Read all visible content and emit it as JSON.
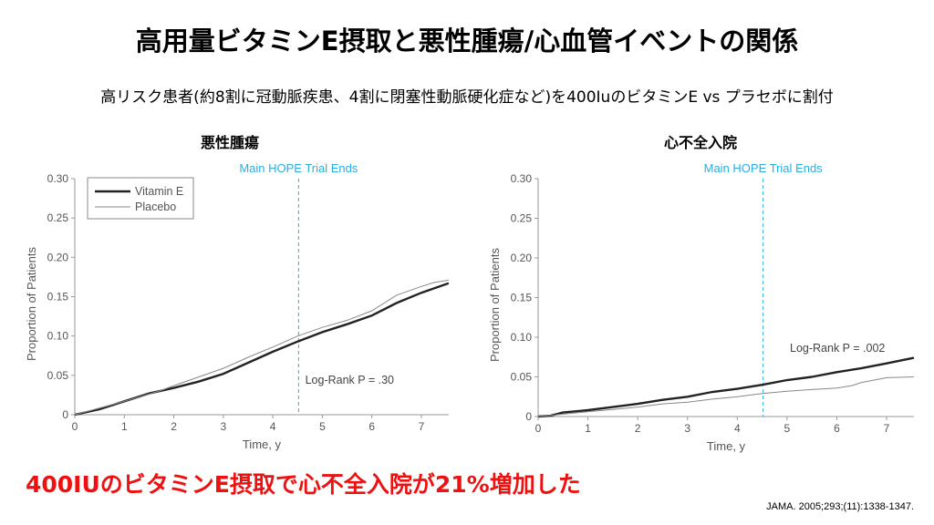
{
  "title": "高用量ビタミンE摂取と悪性腫瘍/心血管イベントの関係",
  "subtitle": "高リスク患者(約8割に冠動脈疾患、4割に閉塞性動脈硬化症など)を400IuのビタミンE vs プラセボに割付",
  "conclusion": "400IUのビタミンE摂取で心不全入院が21%増加した",
  "citation": "JAMA. 2005;293;(11):1338-1347.",
  "colors": {
    "vitamin_e": "#222222",
    "placebo": "#888888",
    "trial_end": "#29aee0",
    "conclusion": "#ee1111"
  },
  "chart_data": [
    {
      "type": "line",
      "title": "悪性腫瘍",
      "xlabel": "Time, y",
      "ylabel": "Proportion of Patients",
      "xlim": [
        0,
        7.55
      ],
      "ylim": [
        0,
        0.3
      ],
      "xticks": [
        "0",
        "1",
        "2",
        "3",
        "4",
        "5",
        "6",
        "7"
      ],
      "yticks": [
        "0",
        "0.05",
        "0.10",
        "0.15",
        "0.20",
        "0.25",
        "0.30"
      ],
      "legend": {
        "position": "top-left",
        "entries": [
          "Vitamin E",
          "Placebo"
        ]
      },
      "annotation": "Log-Rank P = .30",
      "vline": {
        "x": 4.52,
        "label": "Main HOPE Trial Ends"
      },
      "series": [
        {
          "name": "Vitamin E",
          "x": [
            0,
            0.5,
            1,
            1.5,
            2,
            2.5,
            3,
            3.5,
            4,
            4.5,
            5,
            5.5,
            6,
            6.5,
            7,
            7.55
          ],
          "y": [
            0,
            0.007,
            0.017,
            0.027,
            0.034,
            0.042,
            0.052,
            0.066,
            0.08,
            0.093,
            0.105,
            0.115,
            0.126,
            0.142,
            0.155,
            0.167
          ]
        },
        {
          "name": "Placebo",
          "x": [
            0,
            1,
            1.7,
            2,
            2.5,
            3,
            3.5,
            4,
            4.5,
            5,
            5.5,
            6,
            6.5,
            7,
            7.25,
            7.55
          ],
          "y": [
            0,
            0.017,
            0.03,
            0.037,
            0.048,
            0.059,
            0.073,
            0.086,
            0.1,
            0.111,
            0.12,
            0.132,
            0.152,
            0.163,
            0.168,
            0.171
          ]
        }
      ]
    },
    {
      "type": "line",
      "title": "心不全入院",
      "xlabel": "Time, y",
      "ylabel": "Proportion of Patients",
      "xlim": [
        0,
        7.55
      ],
      "ylim": [
        0,
        0.3
      ],
      "xticks": [
        "0",
        "1",
        "2",
        "3",
        "4",
        "5",
        "6",
        "7"
      ],
      "yticks": [
        "0",
        "0.05",
        "0.10",
        "0.15",
        "0.20",
        "0.25",
        "0.30"
      ],
      "annotation": "Log-Rank P = .002",
      "vline": {
        "x": 4.52,
        "label": "Main HOPE Trial Ends"
      },
      "series": [
        {
          "name": "Vitamin E",
          "x": [
            0,
            0.25,
            0.5,
            1,
            1.5,
            2,
            2.5,
            3,
            3.5,
            4,
            4.5,
            5,
            5.5,
            6,
            6.5,
            7,
            7.55
          ],
          "y": [
            0,
            0.001,
            0.005,
            0.008,
            0.012,
            0.016,
            0.021,
            0.025,
            0.031,
            0.035,
            0.04,
            0.046,
            0.05,
            0.056,
            0.061,
            0.067,
            0.074
          ]
        },
        {
          "name": "Placebo",
          "x": [
            0,
            0.5,
            1,
            1.5,
            2,
            2.5,
            3,
            3.5,
            4,
            4.5,
            5,
            5.5,
            6,
            6.3,
            6.5,
            7,
            7.55
          ],
          "y": [
            0,
            0.003,
            0.006,
            0.009,
            0.012,
            0.016,
            0.018,
            0.022,
            0.025,
            0.029,
            0.032,
            0.034,
            0.036,
            0.039,
            0.043,
            0.049,
            0.05
          ]
        }
      ]
    }
  ]
}
